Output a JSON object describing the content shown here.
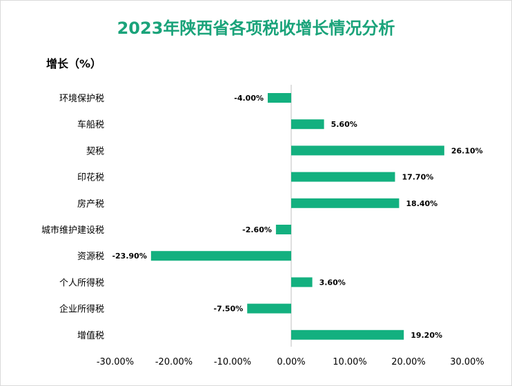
{
  "chart_data": {
    "type": "bar",
    "orientation": "horizontal",
    "title": "2023年陕西省各项税收增长情况分析",
    "ylabel": "增长（%）",
    "categories": [
      "环境保护税",
      "车船税",
      "契税",
      "印花税",
      "房产税",
      "城市维护建设税",
      "资源税",
      "个人所得税",
      "企业所得税",
      "增值税"
    ],
    "values": [
      -4.0,
      5.6,
      26.1,
      17.7,
      18.4,
      -2.6,
      -23.9,
      3.6,
      -7.5,
      19.2
    ],
    "value_labels": [
      "-4.00%",
      "5.60%",
      "26.10%",
      "17.70%",
      "18.40%",
      "-2.60%",
      "-23.90%",
      "3.60%",
      "-7.50%",
      "19.20%"
    ],
    "xlim": [
      -30,
      30
    ],
    "x_ticks": [
      -30,
      -20,
      -10,
      0,
      10,
      20,
      30
    ],
    "x_tick_labels": [
      "-30.00%",
      "-20.00%",
      "-10.00%",
      "0.00%",
      "10.00%",
      "20.00%",
      "30.00%"
    ],
    "grid": false,
    "legend": "none",
    "bar_color": "#13b07f",
    "title_color": "#1aa37a"
  }
}
